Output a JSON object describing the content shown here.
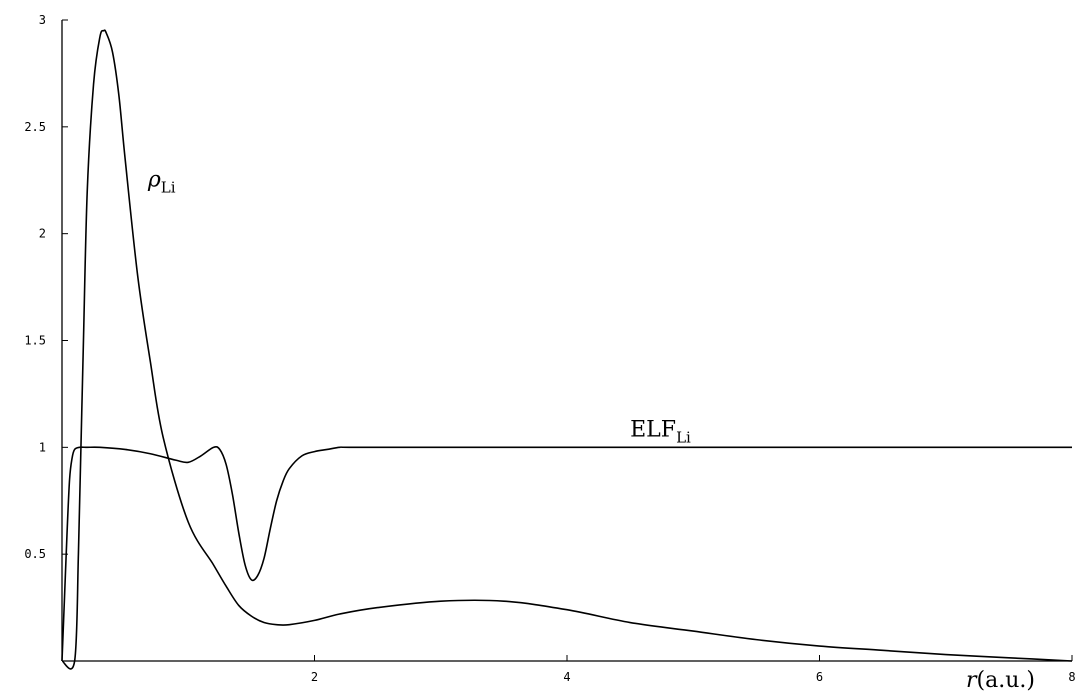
{
  "chart_data": {
    "type": "line",
    "title": "",
    "xlabel": {
      "main": "r",
      "unit": "(a.u.)"
    },
    "ylabel": "",
    "xlim": [
      0,
      8
    ],
    "ylim": [
      0,
      3
    ],
    "grid": false,
    "x_ticks": [
      {
        "value": 2,
        "label": "2"
      },
      {
        "value": 4,
        "label": "4"
      },
      {
        "value": 6,
        "label": "6"
      },
      {
        "value": 8,
        "label": "8"
      }
    ],
    "y_ticks": [
      {
        "value": 0.5,
        "label": "0.5"
      },
      {
        "value": 1,
        "label": "1"
      },
      {
        "value": 1.5,
        "label": "1.5"
      },
      {
        "value": 2,
        "label": "2"
      },
      {
        "value": 2.5,
        "label": "2.5"
      },
      {
        "value": 3,
        "label": "3"
      }
    ],
    "series": [
      {
        "name": "ELF",
        "name_sub": "Li",
        "label_at": {
          "x": 4.5,
          "y": 1.05
        },
        "x": [
          0.0,
          0.02,
          0.04,
          0.06,
          0.08,
          0.1,
          0.14,
          0.2,
          0.3,
          0.5,
          0.7,
          0.9,
          1.0,
          1.1,
          1.2,
          1.25,
          1.3,
          1.35,
          1.4,
          1.45,
          1.5,
          1.55,
          1.6,
          1.65,
          1.7,
          1.75,
          1.8,
          1.9,
          2.0,
          2.1,
          2.2,
          2.3,
          3.0,
          4.0,
          5.0,
          6.0,
          7.0,
          8.0
        ],
        "y": [
          0.0,
          0.3,
          0.6,
          0.85,
          0.95,
          0.99,
          1.0,
          1.0,
          1.0,
          0.99,
          0.97,
          0.94,
          0.93,
          0.96,
          1.0,
          0.99,
          0.92,
          0.78,
          0.6,
          0.45,
          0.38,
          0.4,
          0.48,
          0.62,
          0.75,
          0.84,
          0.9,
          0.96,
          0.98,
          0.99,
          1.0,
          1.0,
          1.0,
          1.0,
          1.0,
          1.0,
          1.0,
          1.0
        ]
      },
      {
        "name": "ρ",
        "name_sub": "Li",
        "label_at": {
          "x": 0.68,
          "y": 2.22
        },
        "x": [
          0.0,
          0.1,
          0.13,
          0.15,
          0.17,
          0.2,
          0.25,
          0.3,
          0.33,
          0.35,
          0.4,
          0.45,
          0.5,
          0.6,
          0.7,
          0.8,
          1.0,
          1.2,
          1.3,
          1.4,
          1.5,
          1.6,
          1.7,
          1.8,
          2.0,
          2.2,
          2.5,
          3.0,
          3.5,
          4.0,
          4.5,
          5.0,
          5.5,
          6.0,
          6.5,
          7.0,
          7.5,
          8.0
        ],
        "y": [
          0.0,
          0.0,
          0.5,
          1.0,
          1.5,
          2.2,
          2.7,
          2.92,
          2.95,
          2.94,
          2.85,
          2.65,
          2.35,
          1.8,
          1.4,
          1.05,
          0.65,
          0.45,
          0.35,
          0.26,
          0.21,
          0.18,
          0.17,
          0.17,
          0.19,
          0.22,
          0.25,
          0.28,
          0.28,
          0.24,
          0.18,
          0.14,
          0.1,
          0.07,
          0.05,
          0.03,
          0.015,
          0.0
        ]
      }
    ]
  }
}
